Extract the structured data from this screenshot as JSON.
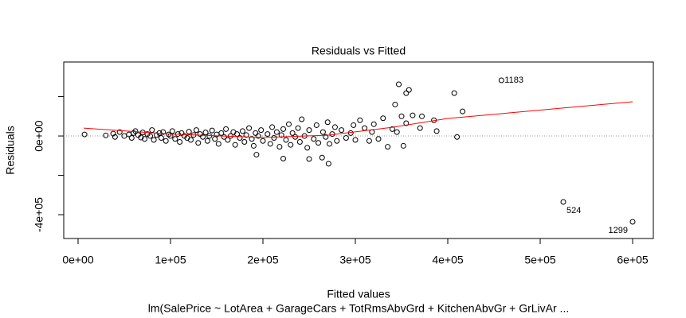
{
  "chart_data": {
    "type": "scatter",
    "title": "Residuals vs Fitted",
    "x_label": "Fitted values",
    "subtitle": "lm(SalePrice ~ LotArea + GarageCars + TotRmsAbvGrd + KitchenAbvGr + GrLivAr ...",
    "y_label": "Residuals",
    "xlim": [
      -15500,
      622400
    ],
    "ylim": [
      -521000,
      376000
    ],
    "xticks": [
      {
        "value": 0,
        "label": "0e+00"
      },
      {
        "value": 100000,
        "label": "1e+05"
      },
      {
        "value": 200000,
        "label": "2e+05"
      },
      {
        "value": 300000,
        "label": "3e+05"
      },
      {
        "value": 400000,
        "label": "4e+05"
      },
      {
        "value": 500000,
        "label": "5e+05"
      },
      {
        "value": 600000,
        "label": "6e+05"
      }
    ],
    "yticks": [
      {
        "value": -400000,
        "label": "-4e+05"
      },
      {
        "value": -200000,
        "label": null
      },
      {
        "value": 0,
        "label": "0e+00"
      },
      {
        "value": 200000,
        "label": null
      }
    ],
    "hline": 0,
    "point_color": "#000000",
    "x": [
      7000,
      30000,
      38000,
      40000,
      45000,
      50000,
      55000,
      58000,
      60000,
      62000,
      65000,
      68000,
      70000,
      72000,
      75000,
      78000,
      80000,
      82000,
      85000,
      88000,
      90000,
      92000,
      95000,
      98000,
      100000,
      102000,
      105000,
      108000,
      110000,
      112000,
      115000,
      118000,
      120000,
      122000,
      125000,
      128000,
      130000,
      132000,
      135000,
      138000,
      140000,
      142000,
      145000,
      148000,
      150000,
      152000,
      155000,
      158000,
      160000,
      162000,
      165000,
      168000,
      170000,
      172000,
      175000,
      178000,
      180000,
      182000,
      185000,
      188000,
      190000,
      192000,
      195000,
      198000,
      200000,
      205000,
      208000,
      210000,
      212000,
      215000,
      218000,
      220000,
      222000,
      225000,
      228000,
      230000,
      232000,
      235000,
      238000,
      240000,
      242000,
      245000,
      248000,
      250000,
      255000,
      258000,
      260000,
      265000,
      268000,
      270000,
      272000,
      275000,
      278000,
      280000,
      285000,
      290000,
      295000,
      298000,
      300000,
      305000,
      310000,
      315000,
      318000,
      320000,
      325000,
      330000,
      335000,
      340000,
      345000,
      350000,
      352000,
      355000,
      358000,
      370000,
      347000,
      355000,
      385000,
      388000,
      372000,
      362000,
      343000,
      410000,
      250000,
      271000,
      222000,
      264000,
      193000,
      407000,
      416000,
      458000,
      525000,
      600000
    ],
    "y": [
      8000,
      3000,
      12000,
      -5000,
      20000,
      0,
      8000,
      -10000,
      15000,
      25000,
      5000,
      -8000,
      18000,
      -15000,
      10000,
      0,
      30000,
      -20000,
      5000,
      15000,
      -10000,
      20000,
      -25000,
      8000,
      0,
      25000,
      -15000,
      10000,
      -30000,
      15000,
      0,
      -10000,
      22000,
      -20000,
      5000,
      30000,
      -35000,
      10000,
      -5000,
      18000,
      -25000,
      0,
      28000,
      -15000,
      8000,
      -40000,
      15000,
      -5000,
      35000,
      -20000,
      0,
      20000,
      -45000,
      10000,
      -10000,
      25000,
      -30000,
      5000,
      40000,
      -15000,
      -50000,
      15000,
      0,
      30000,
      -25000,
      10000,
      -40000,
      45000,
      -10000,
      20000,
      -55000,
      5000,
      35000,
      -20000,
      60000,
      -45000,
      15000,
      -5000,
      40000,
      -30000,
      85000,
      0,
      -60000,
      30000,
      -15000,
      55000,
      -35000,
      20000,
      -5000,
      70000,
      -40000,
      10000,
      45000,
      -25000,
      30000,
      -10000,
      15000,
      55000,
      -20000,
      80000,
      40000,
      -25000,
      20000,
      60000,
      -15000,
      90000,
      -55000,
      35000,
      20000,
      100000,
      -50000,
      65000,
      234000,
      40000,
      263000,
      218000,
      80000,
      25000,
      100000,
      105000,
      160000,
      -5000,
      -117000,
      -141000,
      -115000,
      -110000,
      -95000,
      218000,
      125000,
      283000,
      -335000,
      -436000
    ],
    "smooth": {
      "color": "#ff0000",
      "x": [
        6000,
        100000,
        200000,
        270000,
        340000,
        400000,
        600000
      ],
      "y": [
        40000,
        10000,
        -8000,
        4000,
        44000,
        89000,
        174000
      ]
    },
    "annotations": [
      {
        "text": "1183",
        "x": 458000,
        "y": 283000
      },
      {
        "text": "524",
        "x": 525000,
        "y": -335000
      },
      {
        "text": "1299",
        "x": 600000,
        "y": -436000
      }
    ]
  }
}
